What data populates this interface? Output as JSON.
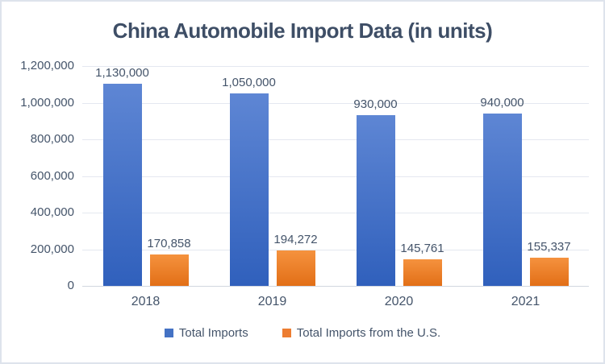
{
  "chart_data": {
    "type": "bar",
    "title": "China Automobile Import Data (in units)",
    "categories": [
      "2018",
      "2019",
      "2020",
      "2021"
    ],
    "series": [
      {
        "name": "Total Imports",
        "color": "#4472C4",
        "gradient_top": "#5E86D4",
        "gradient_bottom": "#3060BC",
        "values": [
          1130000,
          1050000,
          930000,
          940000
        ],
        "labels": [
          "1,130,000",
          "1,050,000",
          "930,000",
          "940,000"
        ]
      },
      {
        "name": "Total Imports from the U.S.",
        "color": "#ED7D31",
        "gradient_top": "#F5923E",
        "gradient_bottom": "#E26F17",
        "values": [
          170858,
          194272,
          145761,
          155337
        ],
        "labels": [
          "170,858",
          "194,272",
          "145,761",
          "155,337"
        ]
      }
    ],
    "y_axis": {
      "min": 0,
      "max": 1200000,
      "step": 200000,
      "ticks": [
        "1,200,000",
        "1,000,000",
        "800,000",
        "600,000",
        "400,000",
        "200,000",
        "0"
      ]
    },
    "grid": true,
    "legend_position": "bottom",
    "colors": {
      "title_text": "#3e4e66",
      "axis_text": "#44546A",
      "gridline": "#e4e8f0",
      "axis_line": "#d2d7e0",
      "chart_border": "#dee3ec",
      "background": "#ffffff"
    }
  }
}
